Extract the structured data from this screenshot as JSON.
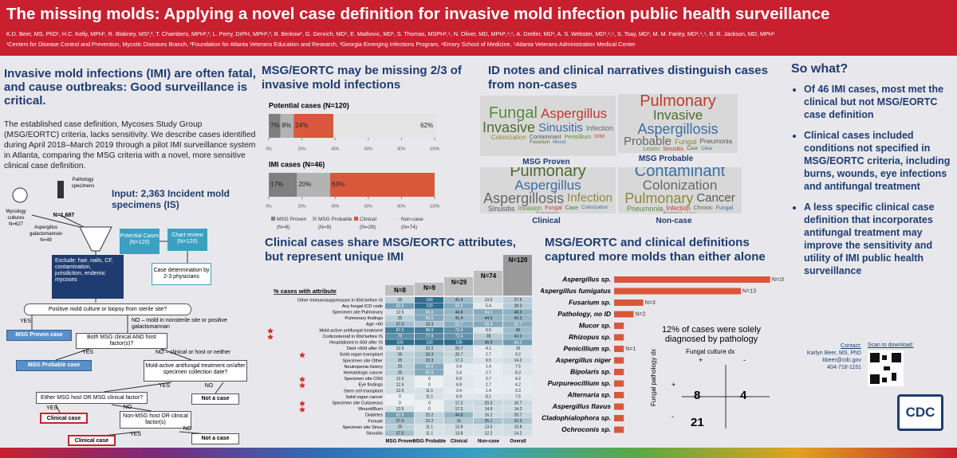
{
  "header": {
    "title": "The missing molds: Applying a novel case definition for invasive mold infection public health surveillance",
    "authors": "K.D. Beer, MS, PhD¹, H.C. Kelly, MPH¹, R. Blakney, MS²,³, T. Chambers, MPH²,³, L. Perry, DrPH, MPH²,³, B. Berkow¹, G. Genrich, MD¹, E. Matkovic, MD¹, S. Thomas, MSPH³,⁴, N. Oliver, MD, MPH³,⁴,⁵, A. Dretler, MD³, A. S. Webster, MD³,⁴,⁵, S. Tsay, MD¹, M. M. Farley, MD³,⁴,⁵, B. R. Jackson, MD, MPH¹",
    "affiliations": "¹Centers for Disease Control and Prevention, Mycotic Diseases Branch, ²Foundation for Atlanta Veterans Education and Research, ³Georgia Emerging Infections Program, ⁴Emory School of Medicine, ⁵Atlanta Veterans Administration Medical Center"
  },
  "intro": {
    "heading": "Invasive mold infections (IMI) are often fatal, and cause outbreaks: Good surveillance is critical.",
    "text": "The established case definition, Mycoses Study Group (MSG/EORTC) criteria, lacks sensitivity. We describe cases identified during April 2018–March 2019 through a pilot IMI surveillance system in Atlanta, comparing the MSG criteria with a novel, more sensitive clinical case definition."
  },
  "flow": {
    "nodes": [
      "Input: 2,363 Incident mold specimens (IS)",
      "Mycology cultures N=627",
      "Pathology specimens",
      "N=1,687",
      "Aspergillus galactomannan N=49",
      "Potential Cases (N=120)",
      "Chart review (N=120)",
      "Exclude: hair, nails, CF, contamination, jurisdiction, endemic mycoses",
      "Case determination by 2-3 physicians",
      "Positive mold culture or biopsy from sterile site?",
      "YES",
      "NO – mold in nonsterile site or positive galactomannan",
      "MSG Proven case",
      "Both MSG clinical AND host factor(s)?",
      "YES",
      "NO – clinical or host or neither",
      "MSG Probable case",
      "Mold-active antifungal treatment on/after specimen collection date?",
      "YES",
      "NO",
      "Either MSG host OR MSG clinical factor?",
      "Not a case",
      "YES",
      "NO",
      "Clinical case",
      "Non-MSG host OR clinical factor(s)",
      "YES",
      "NO",
      "Clinical case",
      "Not a case"
    ]
  },
  "chart_data": [
    {
      "type": "bar",
      "orientation": "horizontal",
      "stacked": true,
      "title": "MSG/EORTC may be missing 2/3 of invasive mold infections",
      "categories": [
        "Potential cases (N=120)",
        "IMI cases (N=46)"
      ],
      "series": [
        {
          "name": "MSG Proven (N=8)",
          "color": "#7f7f7f",
          "values": [
            7,
            17
          ],
          "value_labels": [
            "7%",
            "17%"
          ]
        },
        {
          "name": "MSG Probable (N=9)",
          "color": "#b3b3b3",
          "values": [
            8,
            20
          ],
          "value_labels": [
            "8%",
            "20%"
          ]
        },
        {
          "name": "Clinical (N=29)",
          "color": "#d9583b",
          "values": [
            24,
            63
          ],
          "value_labels": [
            "24%",
            "63%"
          ]
        },
        {
          "name": "Non-case (N=74)",
          "color": "#e4e4e4",
          "values": [
            62,
            0
          ],
          "value_labels": [
            "62%",
            null
          ]
        }
      ],
      "xlim": [
        0,
        100
      ],
      "xticks": [
        {
          "value": 0,
          "label": "0%"
        },
        {
          "value": 20,
          "label": "20%"
        },
        {
          "value": 40,
          "label": "40%"
        },
        {
          "value": 60,
          "label": "60%"
        },
        {
          "value": 80,
          "label": "80%"
        },
        {
          "value": 100,
          "label": "100%"
        }
      ]
    },
    {
      "type": "bar",
      "orientation": "horizontal",
      "title": "MSG/EORTC and clinical definitions captured more molds than either alone",
      "categories": [
        "Aspergillus sp.",
        "Aspergillus fumigatus",
        "Fusarium sp.",
        "Pathology, no ID",
        "Mucor sp.",
        "Rhizopus sp.",
        "Penicillium sp.",
        "Aspergillus niger",
        "Bipolaris sp.",
        "Purpureocillium sp.",
        "Alternaria sp.",
        "Aspergillus flavus",
        "Cladophialophora sp.",
        "Ochroconis sp."
      ],
      "values": [
        16,
        13,
        3,
        2,
        1,
        1,
        1,
        1,
        1,
        1,
        1,
        1,
        1,
        1
      ],
      "value_labels": [
        "N=16",
        "N=13",
        "N=3",
        "N=2",
        null,
        null,
        "N=1",
        null,
        null,
        null,
        null,
        null,
        null,
        null
      ],
      "color": "#d9583b",
      "xlim": [
        0,
        17
      ]
    }
  ],
  "table": {
    "title": "Clinical cases share MSG/EORTC attributes, but represent unique IMI",
    "caption": "% cases with attribute",
    "counts": [
      "N=8",
      "N=9",
      "N=29",
      "N=74",
      "N=120"
    ],
    "columns": [
      "MSG Proven",
      "MSG Probable",
      "Clinical",
      "Non-case",
      "Overall"
    ],
    "rows": [
      {
        "label": "Other Immunosuppressant in 90d before IS",
        "star": false,
        "cells": [
          25,
          100,
          41.4,
          13.5,
          27.5
        ]
      },
      {
        "label": "Any fungal ICD code",
        "star": false,
        "cells": [
          62.5,
          100,
          55.2,
          5.4,
          28.3
        ]
      },
      {
        "label": "Specimen site Pulmonary",
        "star": false,
        "cells": [
          12.5,
          55.6,
          44.8,
          54.1,
          48.3
        ]
      },
      {
        "label": "Pulmonary findings",
        "star": false,
        "cells": [
          25,
          55.6,
          41.4,
          44.6,
          43.3
        ]
      },
      {
        "label": "Age >60",
        "star": false,
        "cells": [
          37.5,
          33.3,
          51.7,
          55.4,
          51.7
        ]
      },
      {
        "label": "Mold-active antifungal treatment",
        "star": true,
        "cells": [
          87.5,
          88.9,
          72.4,
          9.5,
          40
        ]
      },
      {
        "label": "Corticosteroid in 90d before IS",
        "star": true,
        "cells": [
          75,
          77.8,
          72.4,
          28,
          43.3
        ]
      },
      {
        "label": "Hospitalized in 60d after IS",
        "star": false,
        "cells": [
          100,
          100,
          100,
          45.9,
          64.2
        ]
      },
      {
        "label": "Died <60d after IS",
        "star": false,
        "cells": [
          12.5,
          22.2,
          20.7,
          4.1,
          10
        ]
      },
      {
        "label": "Solid organ transplant",
        "star": true,
        "cells": [
          25,
          33.3,
          20.7,
          2.7,
          9.2
        ]
      },
      {
        "label": "Specimen site Other",
        "star": false,
        "cells": [
          25,
          33.3,
          17.2,
          9.5,
          14.2
        ]
      },
      {
        "label": "Neutropenia history",
        "star": false,
        "cells": [
          25,
          55.6,
          3.4,
          1.4,
          7.5
        ]
      },
      {
        "label": "Hematologic cancer",
        "star": false,
        "cells": [
          25,
          55.6,
          3.4,
          2.7,
          8.3
        ]
      },
      {
        "label": "Specimen site CNS",
        "star": true,
        "cells": [
          12.5,
          0,
          6.9,
          2.7,
          4.2
        ]
      },
      {
        "label": "Eye findings",
        "star": true,
        "cells": [
          12.5,
          0,
          6.9,
          2.7,
          4.2
        ]
      },
      {
        "label": "Stem cell transplant",
        "star": false,
        "cells": [
          12.5,
          11.1,
          3.4,
          1.4,
          3.3
        ]
      },
      {
        "label": "Solid organ cancer",
        "star": false,
        "cells": [
          0,
          11.1,
          6.9,
          8.1,
          7.5
        ]
      },
      {
        "label": "Specimen site Cutaneous",
        "star": true,
        "cells": [
          0,
          0,
          17.2,
          20.3,
          16.7
        ]
      },
      {
        "label": "Wound/Burn",
        "star": true,
        "cells": [
          12.5,
          0,
          17.2,
          14.9,
          14.2
        ]
      },
      {
        "label": "Diabetes",
        "star": false,
        "cells": [
          62.5,
          22.2,
          44.8,
          16.2,
          20.7
        ]
      },
      {
        "label": "Female",
        "star": false,
        "cells": [
          37.5,
          22.2,
          31,
          35.1,
          33.3
        ]
      },
      {
        "label": "Specimen site Sinus",
        "star": false,
        "cells": [
          25,
          11.1,
          13.8,
          13.5,
          15.8
        ]
      },
      {
        "label": "Sinusitis",
        "star": false,
        "cells": [
          37.5,
          11.1,
          13.8,
          12.2,
          14.2
        ]
      }
    ]
  },
  "clouds": {
    "title": "ID notes and clinical narratives distinguish cases from non-cases",
    "panels": [
      {
        "caption": "MSG Proven",
        "words": [
          "Fungal",
          "Aspergillus",
          "Invasive",
          "Sinusitis",
          "Infection",
          "Colonization",
          "Contaminant",
          "Penicillium",
          "Orbit",
          "Fusarium",
          "Mucor"
        ]
      },
      {
        "caption": "MSG Probable",
        "words": [
          "Pulmonary",
          "Invasive",
          "Aspergillosis",
          "Probable",
          "Fungal",
          "Pneumonia",
          "Lesion",
          "Sinusitis",
          "Case",
          "Clear"
        ]
      },
      {
        "caption": "Clinical",
        "words": [
          "Pulmonary",
          "Aspergillus",
          "Aspergillosis",
          "Infection",
          "Sinusitis",
          "Invasion",
          "Fungal",
          "Case",
          "Colonization",
          "Cutaneous"
        ]
      },
      {
        "caption": "Non-case",
        "words": [
          "Contaminant",
          "Colonization",
          "Pulmonary",
          "Cancer",
          "Pneumonia",
          "Infection",
          "Chronic",
          "Fungal",
          "Bacterial",
          "Case"
        ]
      }
    ]
  },
  "pathology": {
    "title": "12% of cases were solely diagnosed by pathology",
    "culture": "Fungal culture dx",
    "path": "Fungal pathology dx",
    "plus": "+",
    "minus": "-",
    "cells": [
      8,
      4,
      21
    ]
  },
  "sowhat": {
    "heading": "So what?",
    "bullets": [
      "Of 46 IMI cases, most met the clinical but not MSG/EORTC case definition",
      "Clinical cases included conditions not specified in MSG/EORTC criteria, including burns, wounds, eye infections and antifungal treatment",
      "A less specific clinical case definition that incorporates antifungal treatment may improve the sensitivity and utility of IMI public health surveillance"
    ]
  },
  "contact": {
    "label": "Contact:",
    "name": "Karlyn Beer, MS, PhD",
    "email": "kbeer@cdc.gov",
    "phone": "404-718-1151",
    "scan": "Scan to download:",
    "logo": "CDC"
  }
}
